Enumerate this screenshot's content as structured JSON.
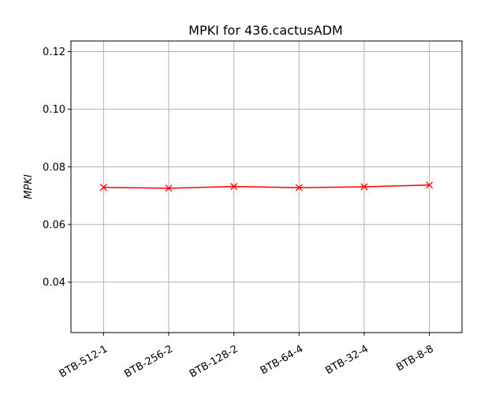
{
  "chart_data": {
    "type": "line",
    "title": "MPKI for 436.cactusADM",
    "xlabel": "",
    "ylabel": "MPKI",
    "categories": [
      "BTB-512-1",
      "BTB-256-2",
      "BTB-128-2",
      "BTB-64-4",
      "BTB-32-4",
      "BTB-8-8"
    ],
    "series": [
      {
        "values": [
          0.0729,
          0.0726,
          0.0732,
          0.0728,
          0.0731,
          0.0737
        ],
        "color": "#ff0000",
        "marker": "x"
      }
    ],
    "ylim": [
      0.0225,
      0.1237
    ],
    "yticks": [
      0.04,
      0.06,
      0.08,
      0.1,
      0.12
    ],
    "ytick_labels": [
      "0.04",
      "0.06",
      "0.08",
      "0.10",
      "0.12"
    ],
    "grid": true,
    "legend": "none"
  }
}
